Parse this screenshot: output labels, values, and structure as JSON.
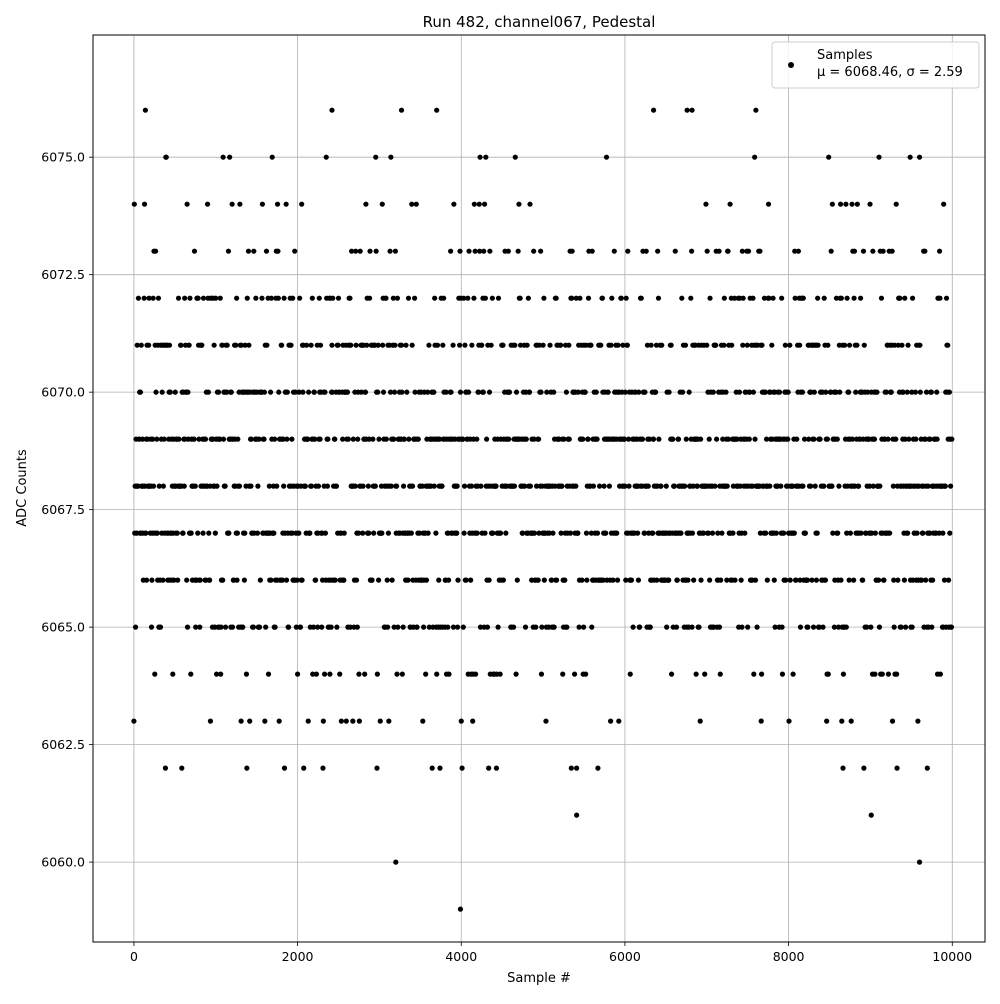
{
  "chart_data": {
    "type": "scatter",
    "title": "Run 482, channel067, Pedestal",
    "xlabel": "Sample #",
    "ylabel": "ADC Counts",
    "xlim": [
      -500,
      10400
    ],
    "ylim": [
      6058.3,
      6077.6
    ],
    "x_ticks": [
      0,
      2000,
      4000,
      6000,
      8000,
      10000
    ],
    "x_tick_labels": [
      "0",
      "2000",
      "4000",
      "6000",
      "8000",
      "10000"
    ],
    "y_ticks": [
      6060.0,
      6062.5,
      6065.0,
      6067.5,
      6070.0,
      6072.5,
      6075.0
    ],
    "y_tick_labels": [
      "6060.0",
      "6062.5",
      "6065.0",
      "6067.5",
      "6070.0",
      "6072.5",
      "6075.0"
    ],
    "grid": true,
    "legend_position": "top-right",
    "series": [
      {
        "name": "Samples",
        "color": "#000000",
        "marker": "circle",
        "n_samples": 10000,
        "mean": 6068.46,
        "sigma": 2.59,
        "levels": [
          6059,
          6060,
          6061,
          6062,
          6063,
          6064,
          6065,
          6066,
          6067,
          6068,
          6069,
          6070,
          6071,
          6072,
          6073,
          6074,
          6075,
          6076
        ],
        "rare_points": [
          {
            "x": 3200,
            "y": 6060
          },
          {
            "x": 9600,
            "y": 6060
          },
          {
            "x": 3990,
            "y": 6059
          },
          {
            "x": 5410,
            "y": 6061
          },
          {
            "x": 9010,
            "y": 6061
          },
          {
            "x": 140,
            "y": 6076
          },
          {
            "x": 2420,
            "y": 6076
          },
          {
            "x": 3270,
            "y": 6076
          },
          {
            "x": 3700,
            "y": 6076
          },
          {
            "x": 6350,
            "y": 6076
          },
          {
            "x": 6760,
            "y": 6076
          },
          {
            "x": 6820,
            "y": 6076
          },
          {
            "x": 7600,
            "y": 6076
          }
        ]
      }
    ],
    "legend": {
      "label": "Samples",
      "stats": "μ = 6068.46, σ = 2.59"
    }
  }
}
